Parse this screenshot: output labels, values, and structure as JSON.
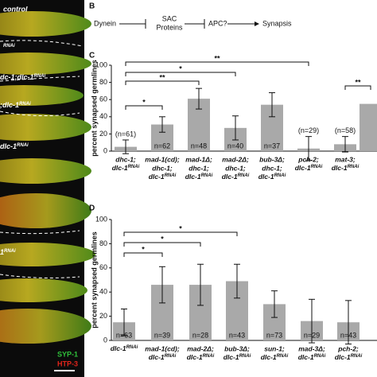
{
  "images": {
    "labels": [
      "control",
      [
        "",
        "RNAi"
      ],
      [
        "dc-1;dlc-1",
        "RNAi"
      ],
      [
        ";dlc-1",
        "RNAi"
      ],
      [
        "dlc-1",
        "RNAi"
      ],
      [
        "1",
        "RNAi"
      ]
    ],
    "legend": [
      {
        "text": "SYP-1",
        "color": "#2fbf3a"
      },
      {
        "text": "HTP-3",
        "color": "#e0241b"
      }
    ]
  },
  "diagram": {
    "label": "B",
    "nodes": [
      "Dynein",
      [
        "SAC",
        "Proteins"
      ],
      "APC?",
      "Synapsis"
    ]
  },
  "chart_data": [
    {
      "type": "bar",
      "label": "C",
      "y_label": "percent synapsed germlines",
      "color": "#a9a9a9",
      "categories": [
        [
          "dhc-1;",
          [
            "dlc-1",
            "RNAi"
          ]
        ],
        [
          "mad-1(cd);",
          "dhc-1;",
          [
            "dlc-1",
            "RNAi"
          ]
        ],
        [
          "mad-1Δ;",
          "dhc-1;",
          [
            "dlc-1",
            "RNAi"
          ]
        ],
        [
          "mad-2Δ;",
          "dhc-1;",
          [
            "dlc-1",
            "RNAi"
          ]
        ],
        [
          "bub-3Δ;",
          "dhc-1;",
          [
            "dlc-1",
            "RNAi"
          ]
        ],
        [
          "pch-2;",
          [
            "dlc-1",
            "RNAi"
          ]
        ],
        [
          "mat-3;",
          [
            "dlc-1",
            "RNAi"
          ]
        ],
        null
      ],
      "values": [
        5,
        31,
        61,
        27,
        54,
        3,
        8,
        55
      ],
      "errors": [
        8,
        9,
        12,
        14,
        14,
        14,
        9,
        null
      ],
      "n_labels": [
        "(n=61)",
        "n=62",
        "n=48",
        "n=40",
        "n=37",
        "(n=29)",
        "(n=58)",
        null
      ],
      "comparisons": [
        {
          "from": 0,
          "to": 5,
          "label": "**"
        },
        {
          "from": 0,
          "to": 3,
          "label": "*"
        },
        {
          "from": 0,
          "to": 2,
          "label": "**"
        },
        {
          "from": 0,
          "to": 1,
          "label": "*"
        },
        {
          "from": 6,
          "to": 7,
          "label": "**"
        }
      ],
      "ylim": [
        0,
        100
      ],
      "yticks": [
        0,
        20,
        40,
        60,
        80,
        100
      ]
    },
    {
      "type": "bar",
      "label": "D",
      "y_label": "percent synapsed germlines",
      "color": "#a9a9a9",
      "categories": [
        [
          [
            "dlc-1",
            "RNAi"
          ]
        ],
        [
          "mad-1(cd);",
          [
            "dlc-1",
            "RNAi"
          ]
        ],
        [
          "mad-2Δ;",
          [
            "dlc-1",
            "RNAi"
          ]
        ],
        [
          "bub-3Δ;",
          [
            "dlc-1",
            "RNAi"
          ]
        ],
        [
          "sun-1;",
          [
            "dlc-1",
            "RNAi"
          ]
        ],
        [
          "mad-3Δ;",
          [
            "dlc-1",
            "RNAi"
          ]
        ],
        [
          "pch-2;",
          [
            "dlc-1",
            "RNAi"
          ]
        ]
      ],
      "values": [
        15,
        46,
        46,
        49,
        30,
        16,
        15
      ],
      "errors": [
        11,
        15,
        17,
        14,
        11,
        18,
        18
      ],
      "n_labels": [
        "n=63",
        "n=39",
        "n=28",
        "n=43",
        "n=73",
        "n=29",
        "n=43"
      ],
      "comparisons": [
        {
          "from": 0,
          "to": 3,
          "label": "*"
        },
        {
          "from": 0,
          "to": 2,
          "label": "*"
        },
        {
          "from": 0,
          "to": 1,
          "label": "*"
        }
      ],
      "ylim": [
        0,
        100
      ],
      "yticks": [
        0,
        20,
        40,
        60,
        80,
        100
      ]
    }
  ]
}
